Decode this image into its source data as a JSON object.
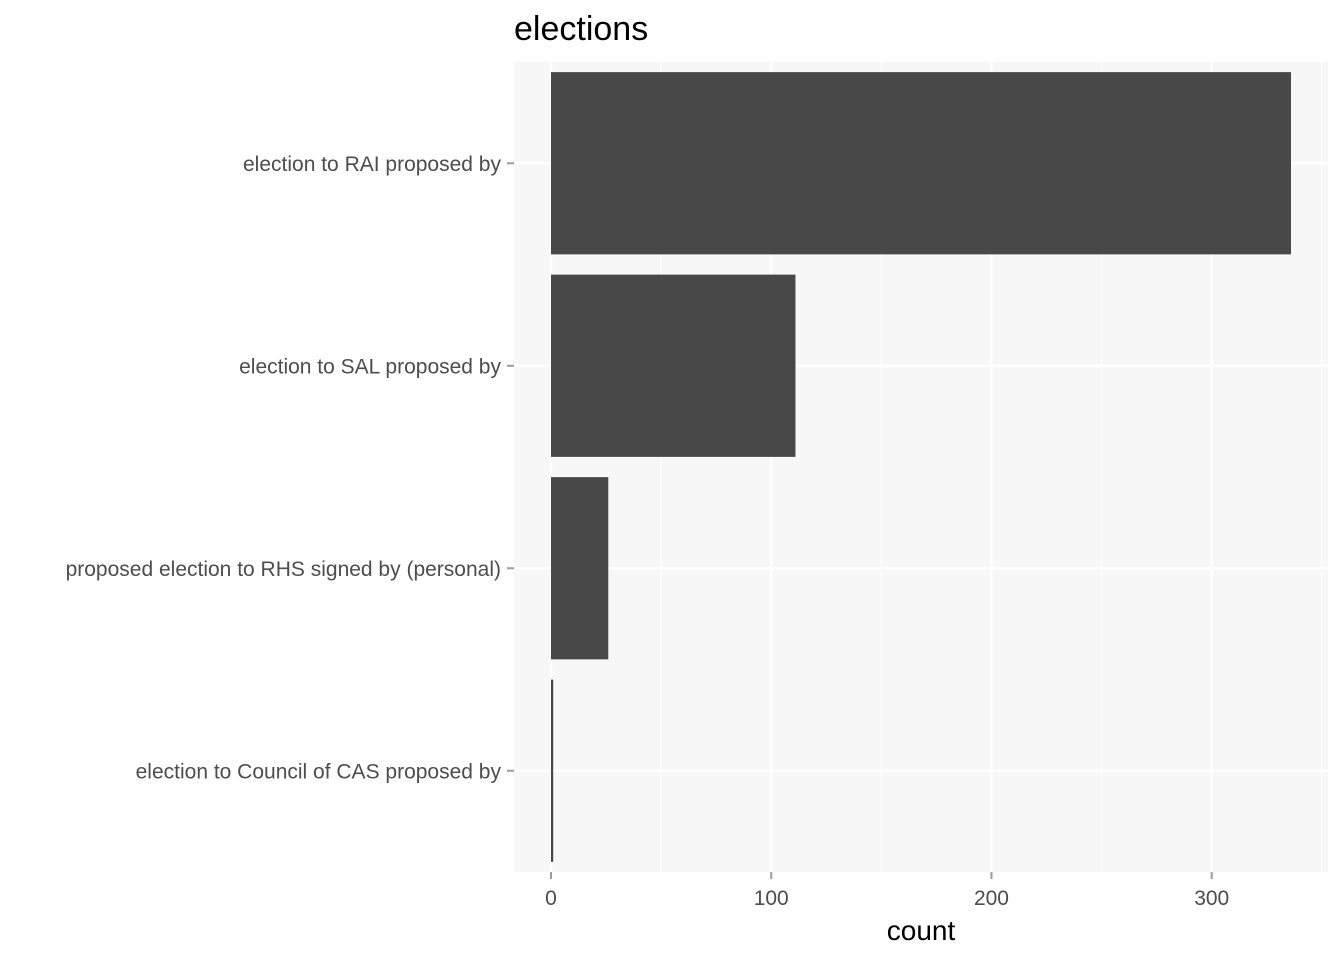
{
  "chart_data": {
    "type": "bar",
    "orientation": "horizontal",
    "title": "elections",
    "xlabel": "count",
    "ylabel": "",
    "categories": [
      "election to RAI proposed by",
      "election to SAL proposed by",
      "proposed election to RHS signed by (personal)",
      "election to Council of CAS proposed by"
    ],
    "values": [
      336,
      111,
      26,
      1
    ],
    "xlim": [
      -16.8,
      352.8
    ],
    "xticks": [
      0,
      100,
      200,
      300
    ],
    "xtick_labels": [
      "0",
      "100",
      "200",
      "300"
    ],
    "grid": true,
    "legend": "none",
    "colors": {
      "bar": "#484848",
      "panel": "#f7f7f7",
      "grid": "#ffffff",
      "axis_text": "#4d4d4d",
      "tick": "#9c9c9c"
    }
  }
}
